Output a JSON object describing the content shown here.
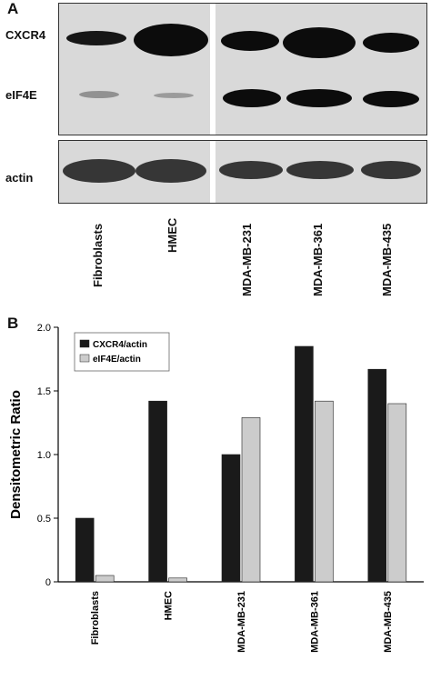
{
  "panels": {
    "a_label": "A",
    "b_label": "B"
  },
  "blot": {
    "row_labels": [
      "CXCR4",
      "eIF4E",
      "actin"
    ],
    "lanes": [
      "Fibroblasts",
      "HMEC",
      "MDA-MB-231",
      "MDA-MB-361",
      "MDA-MB-435"
    ]
  },
  "chart_data": {
    "type": "bar",
    "categories": [
      "Fibroblasts",
      "HMEC",
      "MDA-MB-231",
      "MDA-MB-361",
      "MDA-MB-435"
    ],
    "series": [
      {
        "name": "CXCR4/actin",
        "values": [
          0.5,
          1.42,
          1.0,
          1.85,
          1.67
        ],
        "color": "#1a1a1a"
      },
      {
        "name": "eIF4E/actin",
        "values": [
          0.05,
          0.03,
          1.29,
          1.42,
          1.4
        ],
        "color": "#cccccc"
      }
    ],
    "title": "",
    "xlabel": "",
    "ylabel": "Densitometric Ratio",
    "ylim": [
      0,
      2.0
    ],
    "yticks": [
      "0",
      "0.5",
      "1.0",
      "1.5",
      "2.0"
    ],
    "legend": "top-left",
    "grid": false
  }
}
